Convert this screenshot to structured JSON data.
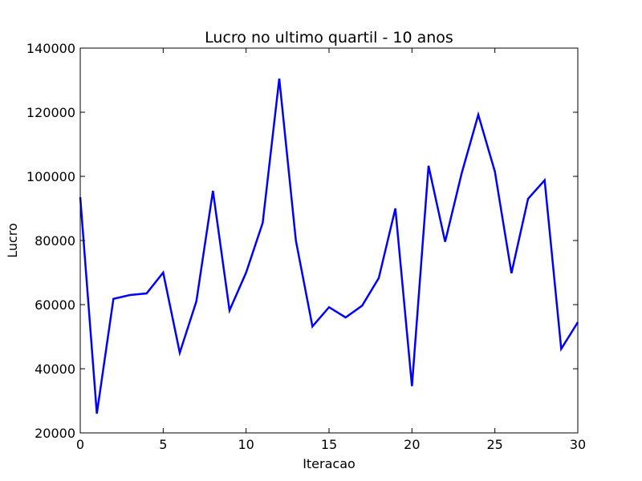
{
  "chart_data": {
    "type": "line",
    "title": "Lucro no ultimo quartil - 10 anos",
    "xlabel": "Iteracao",
    "ylabel": "Lucro",
    "xlim": [
      0,
      30
    ],
    "ylim": [
      20000,
      140000
    ],
    "xticks": [
      0,
      5,
      10,
      15,
      20,
      25,
      30
    ],
    "xtick_labels": [
      "0",
      "5",
      "10",
      "15",
      "20",
      "25",
      "30"
    ],
    "yticks": [
      20000,
      40000,
      60000,
      80000,
      100000,
      120000,
      140000
    ],
    "ytick_labels": [
      "20000",
      "40000",
      "60000",
      "80000",
      "100000",
      "120000",
      "140000"
    ],
    "grid": false,
    "line_color": "#0000ff",
    "series": [
      {
        "x": [
          0,
          1,
          2,
          3,
          4,
          5,
          6,
          7,
          8,
          9,
          10,
          11,
          12,
          13,
          14,
          15,
          16,
          17,
          18,
          19,
          20,
          21,
          22,
          23,
          24,
          25,
          26,
          27,
          28,
          29,
          30
        ],
        "values": [
          93500,
          26000,
          61800,
          63000,
          63500,
          70000,
          45000,
          61000,
          95500,
          58200,
          70000,
          85500,
          130500,
          80000,
          53200,
          59200,
          56000,
          59700,
          68300,
          90000,
          34600,
          103300,
          79600,
          101000,
          119200,
          101500,
          69800,
          93000,
          98800,
          46200,
          54500
        ]
      }
    ]
  }
}
